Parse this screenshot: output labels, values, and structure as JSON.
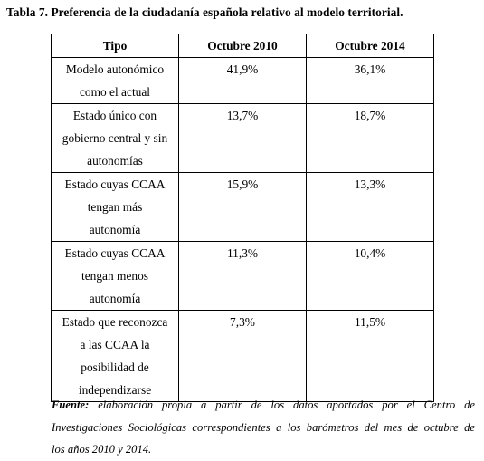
{
  "caption": "Tabla 7. Preferencia de la ciudadanía española relativo al modelo territorial.",
  "table": {
    "headers": [
      "Tipo",
      "Octubre 2010",
      "Octubre 2014"
    ],
    "rows": [
      {
        "tipo_lines": [
          "Modelo autonómico",
          "como el actual"
        ],
        "oct2010": "41,9%",
        "oct2014": "36,1%"
      },
      {
        "tipo_lines": [
          "Estado único con",
          "gobierno central y sin",
          "autonomías"
        ],
        "oct2010": "13,7%",
        "oct2014": "18,7%"
      },
      {
        "tipo_lines": [
          "Estado cuyas CCAA",
          "tengan más",
          "autonomía"
        ],
        "oct2010": "15,9%",
        "oct2014": "13,3%"
      },
      {
        "tipo_lines": [
          "Estado cuyas CCAA",
          "tengan menos",
          "autonomía"
        ],
        "oct2010": "11,3%",
        "oct2014": "10,4%"
      },
      {
        "tipo_lines": [
          "Estado que reconozca",
          "a las CCAA la",
          "posibilidad de",
          "independizarse"
        ],
        "oct2010": "7,3%",
        "oct2014": "11,5%"
      }
    ]
  },
  "source": {
    "label": "Fuente:",
    "line1_rest": "elaboración propia a partir de los datos aportados por el Centro de",
    "line2": "Investigaciones Sociológicas correspondientes a los barómetros del mes de octubre de",
    "line3": "los años 2010 y 2014."
  }
}
